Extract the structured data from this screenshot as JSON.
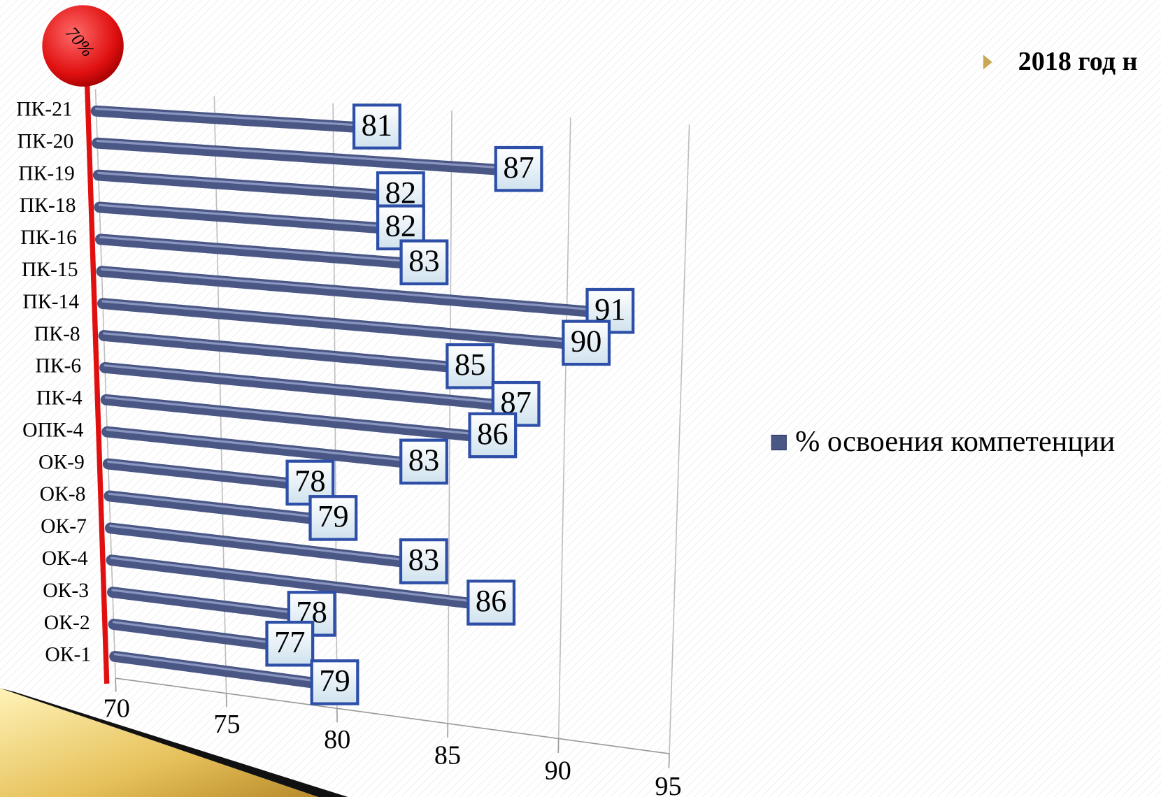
{
  "chart_data": {
    "type": "bar",
    "orientation": "horizontal",
    "title": "2018 год н",
    "annotation": "70%",
    "categories": [
      "ПК-21",
      "ПК-20",
      "ПК-19",
      "ПК-18",
      "ПК-16",
      "ПК-15",
      "ПК-14",
      "ПК-8",
      "ПК-6",
      "ПК-4",
      "ОПК-4",
      "ОК-9",
      "ОК-8",
      "ОК-7",
      "ОК-4",
      "ОК-3",
      "ОК-2",
      "ОК-1"
    ],
    "series": [
      {
        "name": "% освоения компетенции",
        "color": "#4a5785",
        "values": [
          81,
          87,
          82,
          82,
          83,
          91,
          90,
          85,
          87,
          86,
          83,
          78,
          79,
          83,
          86,
          78,
          77,
          79
        ]
      }
    ],
    "xlim": [
      70,
      95
    ],
    "xticks": [
      70,
      75,
      80,
      85,
      90,
      95
    ],
    "grid": true,
    "legend": "right"
  }
}
